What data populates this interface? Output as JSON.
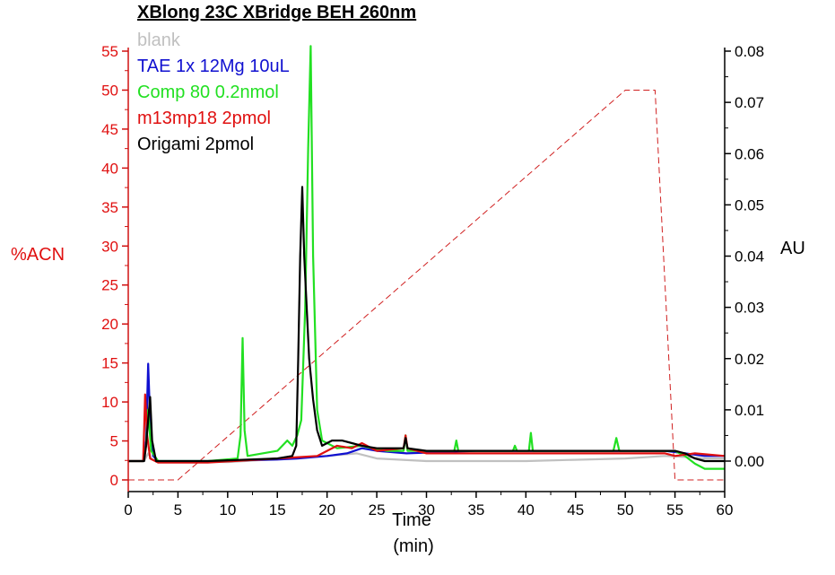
{
  "chart_data": {
    "type": "line",
    "title": "XBlong 23C XBridge BEH 260nm",
    "xlabel": "Time (min)",
    "xlabel_lines": [
      "Time",
      "(min)"
    ],
    "ylabel_left": "%ACN",
    "ylabel_right": "AU",
    "xlim": [
      0,
      60
    ],
    "ylim_left": [
      0,
      55
    ],
    "ylim_right": [
      0.0,
      0.08
    ],
    "x_ticks": [
      "0",
      "5",
      "10",
      "15",
      "20",
      "25",
      "30",
      "35",
      "40",
      "45",
      "50",
      "55",
      "60"
    ],
    "y_left_ticks": [
      "0",
      "5",
      "10",
      "15",
      "20",
      "25",
      "30",
      "35",
      "40",
      "45",
      "50",
      "55"
    ],
    "y_right_ticks": [
      "0.00",
      "0.01",
      "0.02",
      "0.03",
      "0.04",
      "0.05",
      "0.06",
      "0.07",
      "0.08"
    ],
    "legend_placement": "top-left",
    "grid": false,
    "series": [
      {
        "name": "blank",
        "color": "#c0c0c0",
        "axis": "right",
        "points": [
          [
            0,
            0.0
          ],
          [
            1.6,
            0.0
          ],
          [
            2.0,
            0.0015
          ],
          [
            2.4,
            0.0003
          ],
          [
            3,
            0.0
          ],
          [
            10,
            -0.0002
          ],
          [
            16,
            0.0005
          ],
          [
            20,
            0.001
          ],
          [
            23,
            0.0015
          ],
          [
            25,
            0.0005
          ],
          [
            30,
            0.0
          ],
          [
            40,
            0.0
          ],
          [
            50,
            0.0005
          ],
          [
            54,
            0.001
          ],
          [
            56,
            0.0008
          ],
          [
            58,
            0.0005
          ],
          [
            60,
            0.0005
          ]
        ]
      },
      {
        "name": "TAE 1x 12Mg 10uL",
        "color": "#1010d0",
        "axis": "right",
        "points": [
          [
            0,
            0.0
          ],
          [
            1.5,
            0.0
          ],
          [
            1.8,
            0.004
          ],
          [
            2.0,
            0.019
          ],
          [
            2.2,
            0.008
          ],
          [
            2.5,
            0.001
          ],
          [
            3,
            0.0
          ],
          [
            8,
            0.0
          ],
          [
            15,
            0.0003
          ],
          [
            17,
            0.0005
          ],
          [
            20,
            0.001
          ],
          [
            22,
            0.0015
          ],
          [
            23.5,
            0.0025
          ],
          [
            25,
            0.002
          ],
          [
            28,
            0.0015
          ],
          [
            35,
            0.002
          ],
          [
            45,
            0.002
          ],
          [
            50,
            0.002
          ],
          [
            54,
            0.002
          ],
          [
            56,
            0.0015
          ],
          [
            58,
            0.001
          ],
          [
            60,
            0.001
          ]
        ]
      },
      {
        "name": "Comp 80 0.2nmol",
        "color": "#22e022",
        "axis": "right",
        "points": [
          [
            0,
            0.0
          ],
          [
            1.5,
            0.0
          ],
          [
            1.8,
            0.003
          ],
          [
            2.0,
            0.01
          ],
          [
            2.3,
            0.002
          ],
          [
            3,
            0.0
          ],
          [
            8,
            0.0
          ],
          [
            11,
            0.0005
          ],
          [
            11.3,
            0.005
          ],
          [
            11.5,
            0.024
          ],
          [
            11.7,
            0.006
          ],
          [
            12,
            0.001
          ],
          [
            15,
            0.002
          ],
          [
            16,
            0.004
          ],
          [
            16.5,
            0.003
          ],
          [
            17,
            0.005
          ],
          [
            17.4,
            0.008
          ],
          [
            17.8,
            0.03
          ],
          [
            18.1,
            0.061
          ],
          [
            18.35,
            0.081
          ],
          [
            18.6,
            0.04
          ],
          [
            19,
            0.01
          ],
          [
            19.5,
            0.004
          ],
          [
            21,
            0.0025
          ],
          [
            23.5,
            0.003
          ],
          [
            24.5,
            0.0025
          ],
          [
            26,
            0.002
          ],
          [
            27.7,
            0.002
          ],
          [
            27.9,
            0.005
          ],
          [
            28.1,
            0.002
          ],
          [
            30,
            0.002
          ],
          [
            32.8,
            0.002
          ],
          [
            33,
            0.004
          ],
          [
            33.2,
            0.002
          ],
          [
            38.7,
            0.002
          ],
          [
            38.9,
            0.003
          ],
          [
            39.1,
            0.002
          ],
          [
            40.3,
            0.002
          ],
          [
            40.5,
            0.0055
          ],
          [
            40.7,
            0.002
          ],
          [
            48.8,
            0.002
          ],
          [
            49.1,
            0.0045
          ],
          [
            49.4,
            0.002
          ],
          [
            52,
            0.002
          ],
          [
            55,
            0.002
          ],
          [
            56,
            0.001
          ],
          [
            57,
            -0.0005
          ],
          [
            58,
            -0.0015
          ],
          [
            60,
            -0.0015
          ]
        ]
      },
      {
        "name": "m13mp18 2pmol",
        "color": "#e01010",
        "axis": "right",
        "points": [
          [
            0,
            0.0
          ],
          [
            1.5,
            0.0
          ],
          [
            1.6,
            0.006
          ],
          [
            1.7,
            0.013
          ],
          [
            1.9,
            0.005
          ],
          [
            2.2,
            0.0005
          ],
          [
            3,
            -0.0003
          ],
          [
            8,
            -0.0003
          ],
          [
            15,
            0.0005
          ],
          [
            19,
            0.001
          ],
          [
            20,
            0.002
          ],
          [
            21,
            0.003
          ],
          [
            22.5,
            0.0025
          ],
          [
            23.5,
            0.0035
          ],
          [
            25,
            0.002
          ],
          [
            27.7,
            0.0025
          ],
          [
            27.9,
            0.005
          ],
          [
            28.1,
            0.0025
          ],
          [
            30,
            0.0015
          ],
          [
            40,
            0.0015
          ],
          [
            50,
            0.0015
          ],
          [
            54,
            0.0015
          ],
          [
            55,
            0.001
          ],
          [
            57,
            0.0015
          ],
          [
            60,
            0.001
          ]
        ]
      },
      {
        "name": "Origami 2pmol",
        "color": "#000000",
        "axis": "right",
        "points": [
          [
            0,
            0.0
          ],
          [
            1.6,
            0.0
          ],
          [
            1.8,
            0.003
          ],
          [
            2.0,
            0.008
          ],
          [
            2.2,
            0.0125
          ],
          [
            2.4,
            0.004
          ],
          [
            2.8,
            0.0
          ],
          [
            8,
            0.0
          ],
          [
            15,
            0.0005
          ],
          [
            16.5,
            0.001
          ],
          [
            16.9,
            0.003
          ],
          [
            17.1,
            0.02
          ],
          [
            17.3,
            0.04
          ],
          [
            17.5,
            0.0535
          ],
          [
            17.7,
            0.04
          ],
          [
            17.9,
            0.032
          ],
          [
            18.2,
            0.02
          ],
          [
            18.6,
            0.012
          ],
          [
            19,
            0.006
          ],
          [
            19.5,
            0.003
          ],
          [
            20.5,
            0.004
          ],
          [
            21.5,
            0.004
          ],
          [
            22.5,
            0.0035
          ],
          [
            23.5,
            0.003
          ],
          [
            25,
            0.0025
          ],
          [
            27.7,
            0.0025
          ],
          [
            27.9,
            0.0045
          ],
          [
            28.1,
            0.0025
          ],
          [
            30,
            0.002
          ],
          [
            40,
            0.002
          ],
          [
            50,
            0.002
          ],
          [
            55,
            0.002
          ],
          [
            56,
            0.0015
          ],
          [
            57,
            0.0005
          ],
          [
            58,
            0.0
          ],
          [
            60,
            0.0
          ]
        ]
      },
      {
        "name": "",
        "color": "#d02020",
        "axis": "left",
        "dashed": true,
        "points": [
          [
            0,
            0
          ],
          [
            5,
            0
          ],
          [
            50,
            50
          ],
          [
            53,
            50
          ],
          [
            55,
            0
          ],
          [
            60,
            0
          ]
        ]
      }
    ]
  }
}
